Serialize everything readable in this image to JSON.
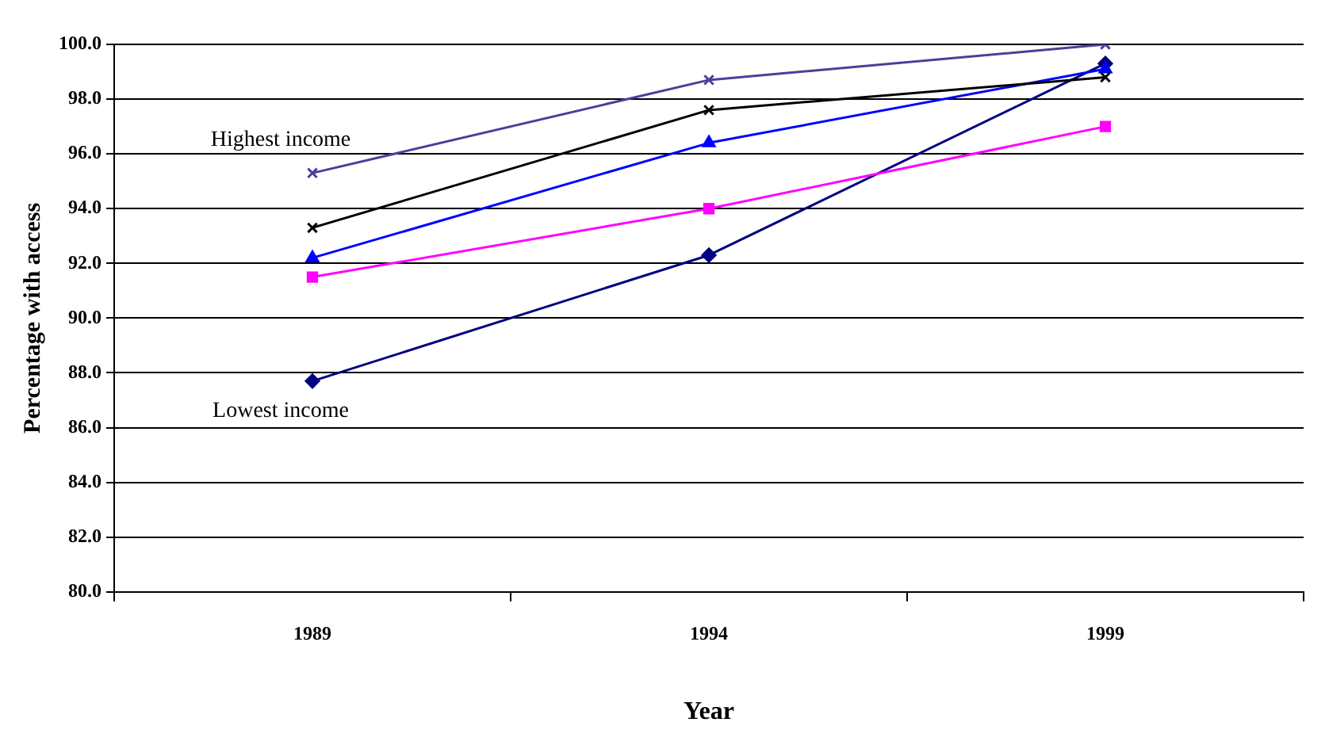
{
  "chart_data": {
    "type": "line",
    "xlabel": "Year",
    "ylabel": "Percentage with access",
    "categories": [
      "1989",
      "1994",
      "1999"
    ],
    "ylim": [
      80,
      100
    ],
    "yticks": [
      {
        "value": 80,
        "label": "80.0"
      },
      {
        "value": 82,
        "label": "82.0"
      },
      {
        "value": 84,
        "label": "84.0"
      },
      {
        "value": 86,
        "label": "86.0"
      },
      {
        "value": 88,
        "label": "88.0"
      },
      {
        "value": 90,
        "label": "90.0"
      },
      {
        "value": 92,
        "label": "92.0"
      },
      {
        "value": 94,
        "label": "94.0"
      },
      {
        "value": 96,
        "label": "96.0"
      },
      {
        "value": 98,
        "label": "98.0"
      },
      {
        "value": 100,
        "label": "100.0"
      }
    ],
    "grid": "y",
    "legend": false,
    "line_style": "solid",
    "series": [
      {
        "name": "Highest income",
        "color": "#4b3f9b",
        "marker": "cross",
        "values": [
          95.3,
          98.7,
          100.0
        ]
      },
      {
        "color": "#000000",
        "marker": "cross",
        "values": [
          93.3,
          97.6,
          98.8
        ]
      },
      {
        "color": "#0000ff",
        "marker": "triangle",
        "values": [
          92.2,
          96.4,
          99.1
        ]
      },
      {
        "color": "#ff00ff",
        "marker": "square",
        "values": [
          91.5,
          94.0,
          97.0
        ]
      },
      {
        "name": "Lowest income",
        "color": "#000080",
        "marker": "diamond",
        "values": [
          87.7,
          92.3,
          99.3
        ]
      }
    ]
  }
}
